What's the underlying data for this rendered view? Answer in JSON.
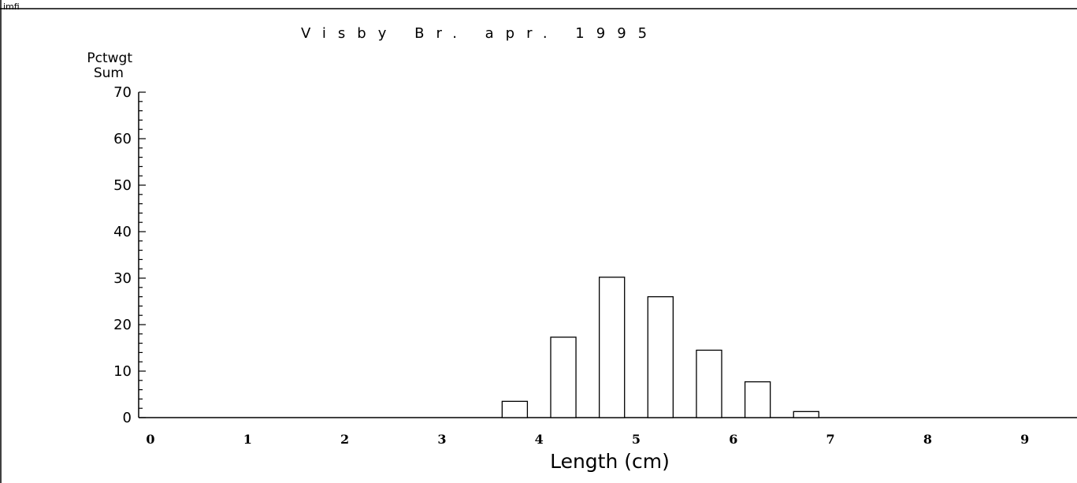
{
  "corner_label": "imfi",
  "chart_data": {
    "type": "bar",
    "title": "Visby Br. apr. 1995",
    "ylabel_line1": "Pctwgt",
    "ylabel_line2": "Sum",
    "xlabel": "Length (cm)",
    "x_ticks": [
      "0",
      "1",
      "2",
      "3",
      "4",
      "5",
      "6",
      "7",
      "8",
      "9"
    ],
    "y_ticks": [
      "0",
      "10",
      "20",
      "30",
      "40",
      "50",
      "60",
      "70"
    ],
    "ylim": [
      0,
      70
    ],
    "xlim": [
      -0.15,
      9.55
    ],
    "bin_width": 0.5,
    "x": [
      3.75,
      4.25,
      4.75,
      5.25,
      5.75,
      6.25,
      6.75
    ],
    "values": [
      3.5,
      17.3,
      30.2,
      26.0,
      14.5,
      7.7,
      1.3
    ],
    "grid": false,
    "bar_fill": "#ffffff",
    "bar_stroke": "#000000"
  }
}
